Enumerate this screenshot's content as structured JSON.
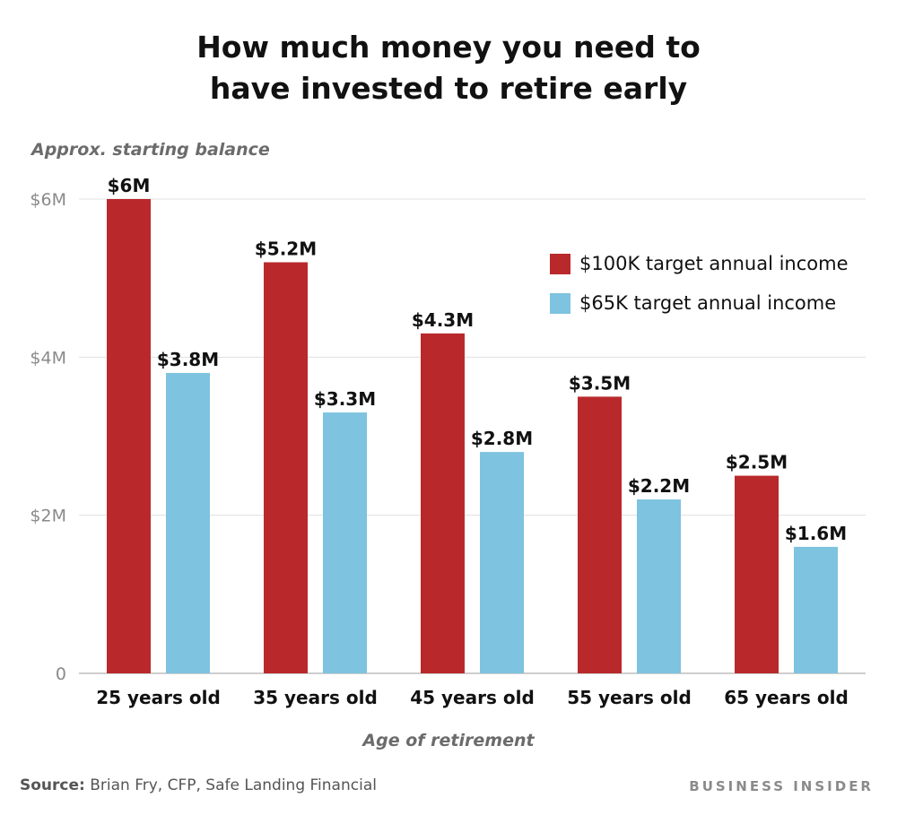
{
  "title_lines": [
    "How much money you need to",
    "have invested to retire early"
  ],
  "source_label": "Source:",
  "source_text": "Brian Fry, CFP, Safe Landing Financial",
  "brand": "BUSINESS INSIDER",
  "colors": {
    "series_100k": "#b9292b",
    "series_65k": "#7ec3df",
    "grid": "#e0e0e0",
    "axis_text": "#8a8a8a"
  },
  "chart_data": {
    "type": "bar",
    "title": "How much money you need to have invested to retire early",
    "ylabel": "Approx. starting balance",
    "xlabel": "Age of retirement",
    "categories": [
      "25 years old",
      "35 years old",
      "45 years old",
      "55 years old",
      "65 years old"
    ],
    "ylim": [
      0,
      6
    ],
    "yticks": [
      0,
      2,
      4,
      6
    ],
    "ytick_labels": [
      "0",
      "$2M",
      "$4M",
      "$6M"
    ],
    "grid": true,
    "legend_position": "top-right",
    "series": [
      {
        "name": "$100K target annual income",
        "values": [
          6,
          5.2,
          4.3,
          3.5,
          2.5
        ],
        "labels": [
          "$6M",
          "$5.2M",
          "$4.3M",
          "$3.5M",
          "$2.5M"
        ]
      },
      {
        "name": "$65K target annual income",
        "values": [
          3.8,
          3.3,
          2.8,
          2.2,
          1.6
        ],
        "labels": [
          "$3.8M",
          "$3.3M",
          "$2.8M",
          "$2.2M",
          "$1.6M"
        ]
      }
    ]
  }
}
